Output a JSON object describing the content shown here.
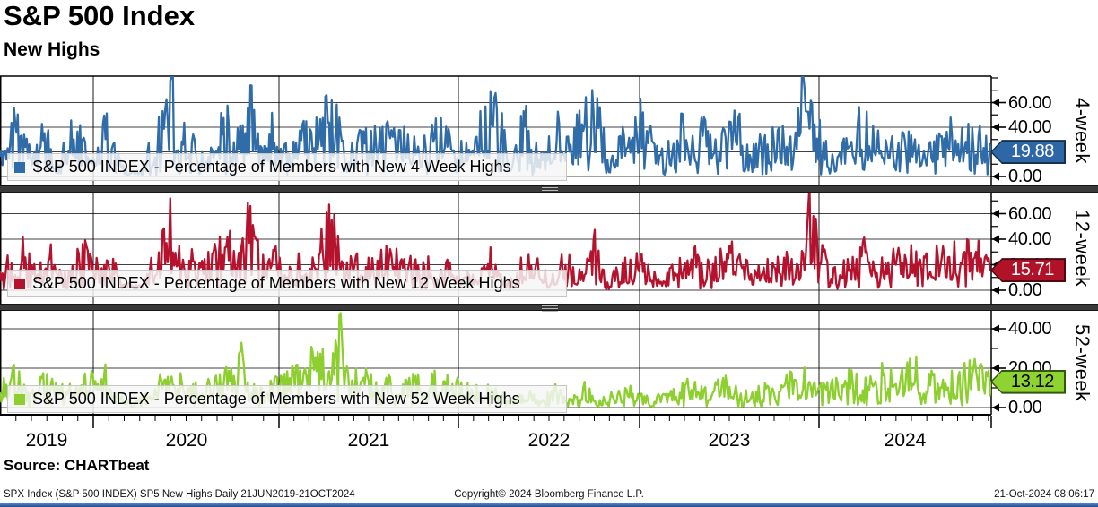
{
  "header": {
    "title": "S&P 500 Index",
    "subtitle": "New Highs"
  },
  "source_label": "Source: CHARTbeat",
  "footer": {
    "left": "SPX Index (S&P 500 INDEX) SP5 New Highs  Daily 21JUN2019-21OCT2024",
    "center": "Copyright© 2024 Bloomberg Finance L.P.",
    "right": "21-Oct-2024 08:06:17"
  },
  "x_axis": {
    "start": "21JUN2019",
    "end": "21OCT2024",
    "frequency": "Daily",
    "year_labels": [
      "2019",
      "2020",
      "2021",
      "2022",
      "2023",
      "2024"
    ]
  },
  "chart_data": [
    {
      "type": "line",
      "panel_label": "4-week",
      "legend": "S&P 500 INDEX - Percentage of Members with New 4 Week Highs",
      "ylabel": "Percentage of members with new 4 week highs",
      "color": "#2f6ca8",
      "badge": {
        "fill": "#2e67a8",
        "border": "#17324d",
        "text_color": "#ffffff"
      },
      "last_value": 19.88,
      "last_value_label": "19.88",
      "ylim": [
        -8,
        82
      ],
      "yticks": [
        {
          "value": 0,
          "label": "0.00"
        },
        {
          "value": 20,
          "label": "20.00"
        },
        {
          "value": 40,
          "label": "40.00"
        },
        {
          "value": 60,
          "label": "60.00"
        }
      ],
      "yticks_minor": [
        10,
        30,
        50,
        70,
        80
      ],
      "seed": 11,
      "peak_force": 60,
      "keypoints_fraction_value": [
        [
          0.0,
          22
        ],
        [
          0.01,
          40
        ],
        [
          0.022,
          44
        ],
        [
          0.033,
          12
        ],
        [
          0.045,
          38
        ],
        [
          0.058,
          8
        ],
        [
          0.068,
          30
        ],
        [
          0.08,
          42
        ],
        [
          0.09,
          15
        ],
        [
          0.1,
          30
        ],
        [
          0.11,
          42
        ],
        [
          0.12,
          12
        ],
        [
          0.132,
          4
        ],
        [
          0.142,
          3
        ],
        [
          0.152,
          25
        ],
        [
          0.163,
          45
        ],
        [
          0.172,
          78
        ],
        [
          0.18,
          30
        ],
        [
          0.192,
          38
        ],
        [
          0.205,
          18
        ],
        [
          0.218,
          35
        ],
        [
          0.23,
          45
        ],
        [
          0.243,
          30
        ],
        [
          0.252,
          74
        ],
        [
          0.262,
          25
        ],
        [
          0.275,
          40
        ],
        [
          0.29,
          18
        ],
        [
          0.305,
          32
        ],
        [
          0.32,
          40
        ],
        [
          0.335,
          62
        ],
        [
          0.345,
          25
        ],
        [
          0.36,
          35
        ],
        [
          0.375,
          28
        ],
        [
          0.39,
          38
        ],
        [
          0.405,
          30
        ],
        [
          0.42,
          26
        ],
        [
          0.435,
          34
        ],
        [
          0.45,
          40
        ],
        [
          0.462,
          22
        ],
        [
          0.475,
          30
        ],
        [
          0.49,
          48
        ],
        [
          0.502,
          55
        ],
        [
          0.515,
          8
        ],
        [
          0.53,
          50
        ],
        [
          0.545,
          12
        ],
        [
          0.56,
          45
        ],
        [
          0.575,
          25
        ],
        [
          0.59,
          50
        ],
        [
          0.602,
          55
        ],
        [
          0.615,
          8
        ],
        [
          0.63,
          35
        ],
        [
          0.645,
          48
        ],
        [
          0.66,
          25
        ],
        [
          0.672,
          20
        ],
        [
          0.685,
          38
        ],
        [
          0.7,
          45
        ],
        [
          0.715,
          32
        ],
        [
          0.73,
          38
        ],
        [
          0.745,
          42
        ],
        [
          0.758,
          18
        ],
        [
          0.772,
          30
        ],
        [
          0.785,
          35
        ],
        [
          0.8,
          25
        ],
        [
          0.812,
          72
        ],
        [
          0.822,
          48
        ],
        [
          0.832,
          28
        ],
        [
          0.842,
          12
        ],
        [
          0.855,
          32
        ],
        [
          0.87,
          46
        ],
        [
          0.885,
          28
        ],
        [
          0.898,
          24
        ],
        [
          0.912,
          42
        ],
        [
          0.925,
          24
        ],
        [
          0.938,
          20
        ],
        [
          0.952,
          46
        ],
        [
          0.965,
          32
        ],
        [
          0.978,
          42
        ],
        [
          0.99,
          30
        ],
        [
          1.0,
          19.88
        ]
      ]
    },
    {
      "type": "line",
      "panel_label": "12-week",
      "legend": "S&P 500 INDEX - Percentage of Members with New 12 Week Highs",
      "ylabel": "Percentage of members with new 12 week highs",
      "color": "#b5122e",
      "badge": {
        "fill": "#b01228",
        "border": "#4d0812",
        "text_color": "#ffffff"
      },
      "last_value": 15.71,
      "last_value_label": "15.71",
      "ylim": [
        -8,
        77
      ],
      "yticks": [
        {
          "value": 0,
          "label": "0.00"
        },
        {
          "value": 20,
          "label": "20.00"
        },
        {
          "value": 40,
          "label": "40.00"
        },
        {
          "value": 60,
          "label": "60.00"
        }
      ],
      "yticks_minor": [
        10,
        30,
        50,
        70
      ],
      "seed": 22,
      "peak_force": 50,
      "keypoints_fraction_value": [
        [
          0.0,
          16
        ],
        [
          0.012,
          30
        ],
        [
          0.025,
          34
        ],
        [
          0.038,
          12
        ],
        [
          0.05,
          28
        ],
        [
          0.063,
          10
        ],
        [
          0.075,
          25
        ],
        [
          0.088,
          32
        ],
        [
          0.1,
          18
        ],
        [
          0.112,
          26
        ],
        [
          0.122,
          10
        ],
        [
          0.132,
          4
        ],
        [
          0.142,
          3
        ],
        [
          0.152,
          18
        ],
        [
          0.163,
          30
        ],
        [
          0.172,
          72
        ],
        [
          0.182,
          22
        ],
        [
          0.195,
          28
        ],
        [
          0.208,
          20
        ],
        [
          0.22,
          30
        ],
        [
          0.232,
          36
        ],
        [
          0.244,
          28
        ],
        [
          0.252,
          66
        ],
        [
          0.263,
          18
        ],
        [
          0.275,
          30
        ],
        [
          0.29,
          12
        ],
        [
          0.305,
          24
        ],
        [
          0.32,
          30
        ],
        [
          0.335,
          55
        ],
        [
          0.346,
          15
        ],
        [
          0.36,
          26
        ],
        [
          0.375,
          20
        ],
        [
          0.39,
          28
        ],
        [
          0.405,
          22
        ],
        [
          0.42,
          18
        ],
        [
          0.435,
          24
        ],
        [
          0.45,
          28
        ],
        [
          0.465,
          14
        ],
        [
          0.48,
          8
        ],
        [
          0.495,
          25
        ],
        [
          0.51,
          4
        ],
        [
          0.525,
          20
        ],
        [
          0.54,
          32
        ],
        [
          0.555,
          6
        ],
        [
          0.57,
          25
        ],
        [
          0.585,
          12
        ],
        [
          0.6,
          38
        ],
        [
          0.612,
          6
        ],
        [
          0.628,
          18
        ],
        [
          0.642,
          25
        ],
        [
          0.658,
          12
        ],
        [
          0.672,
          10
        ],
        [
          0.688,
          22
        ],
        [
          0.702,
          28
        ],
        [
          0.716,
          18
        ],
        [
          0.73,
          26
        ],
        [
          0.745,
          30
        ],
        [
          0.76,
          12
        ],
        [
          0.775,
          20
        ],
        [
          0.79,
          24
        ],
        [
          0.805,
          18
        ],
        [
          0.815,
          65
        ],
        [
          0.825,
          35
        ],
        [
          0.835,
          20
        ],
        [
          0.845,
          14
        ],
        [
          0.858,
          26
        ],
        [
          0.872,
          32
        ],
        [
          0.886,
          20
        ],
        [
          0.9,
          26
        ],
        [
          0.914,
          30
        ],
        [
          0.928,
          20
        ],
        [
          0.942,
          24
        ],
        [
          0.956,
          34
        ],
        [
          0.97,
          26
        ],
        [
          0.984,
          34
        ],
        [
          1.0,
          15.71
        ]
      ]
    },
    {
      "type": "line",
      "panel_label": "52-week",
      "legend": "S&P 500 INDEX - Percentage of Members with New 52 Week Highs",
      "ylabel": "Percentage of members with new 52 week highs",
      "color": "#8ccf2e",
      "badge": {
        "fill": "#8ed32f",
        "border": "#33570e",
        "text_color": "#000000"
      },
      "last_value": 13.12,
      "last_value_label": "13.12",
      "ylim": [
        -4,
        49
      ],
      "yticks": [
        {
          "value": 0,
          "label": "0.00"
        },
        {
          "value": 20,
          "label": "20.00"
        },
        {
          "value": 40,
          "label": "40.00"
        }
      ],
      "yticks_minor": [
        10,
        30
      ],
      "seed": 33,
      "peak_force": 40,
      "keypoints_fraction_value": [
        [
          0.0,
          9
        ],
        [
          0.015,
          18
        ],
        [
          0.03,
          6
        ],
        [
          0.045,
          14
        ],
        [
          0.06,
          8
        ],
        [
          0.075,
          12
        ],
        [
          0.09,
          16
        ],
        [
          0.1,
          26
        ],
        [
          0.112,
          8
        ],
        [
          0.125,
          4
        ],
        [
          0.135,
          2
        ],
        [
          0.148,
          8
        ],
        [
          0.16,
          12
        ],
        [
          0.172,
          16
        ],
        [
          0.185,
          12
        ],
        [
          0.2,
          9
        ],
        [
          0.215,
          12
        ],
        [
          0.23,
          16
        ],
        [
          0.243,
          28
        ],
        [
          0.255,
          10
        ],
        [
          0.27,
          9
        ],
        [
          0.285,
          14
        ],
        [
          0.3,
          20
        ],
        [
          0.315,
          26
        ],
        [
          0.33,
          30
        ],
        [
          0.342,
          47
        ],
        [
          0.352,
          14
        ],
        [
          0.365,
          18
        ],
        [
          0.38,
          10
        ],
        [
          0.395,
          16
        ],
        [
          0.41,
          12
        ],
        [
          0.425,
          14
        ],
        [
          0.44,
          16
        ],
        [
          0.455,
          12
        ],
        [
          0.47,
          10
        ],
        [
          0.485,
          8
        ],
        [
          0.5,
          9
        ],
        [
          0.515,
          3
        ],
        [
          0.53,
          8
        ],
        [
          0.545,
          3
        ],
        [
          0.56,
          9
        ],
        [
          0.575,
          4
        ],
        [
          0.59,
          10
        ],
        [
          0.605,
          3
        ],
        [
          0.62,
          7
        ],
        [
          0.635,
          9
        ],
        [
          0.65,
          6
        ],
        [
          0.665,
          5
        ],
        [
          0.68,
          9
        ],
        [
          0.695,
          12
        ],
        [
          0.71,
          8
        ],
        [
          0.725,
          11
        ],
        [
          0.74,
          13
        ],
        [
          0.755,
          6
        ],
        [
          0.77,
          9
        ],
        [
          0.785,
          11
        ],
        [
          0.8,
          14
        ],
        [
          0.815,
          16
        ],
        [
          0.83,
          10
        ],
        [
          0.845,
          12
        ],
        [
          0.86,
          18
        ],
        [
          0.875,
          13
        ],
        [
          0.89,
          20
        ],
        [
          0.905,
          15
        ],
        [
          0.92,
          22
        ],
        [
          0.935,
          12
        ],
        [
          0.95,
          19
        ],
        [
          0.965,
          14
        ],
        [
          0.98,
          21
        ],
        [
          1.0,
          13.12
        ]
      ]
    }
  ]
}
